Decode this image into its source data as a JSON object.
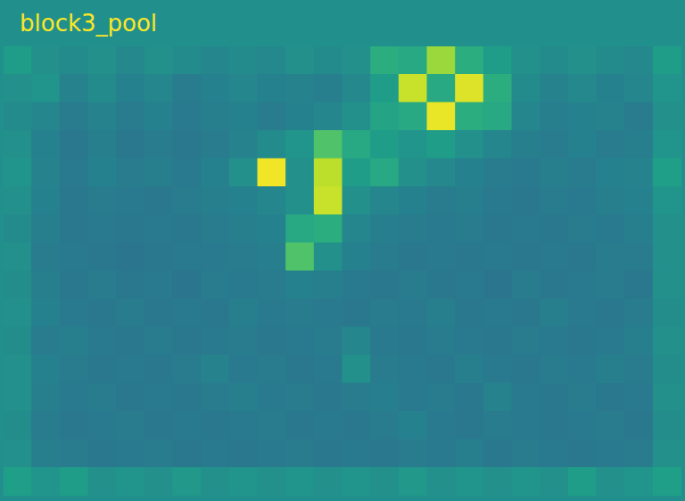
{
  "chart_data": {
    "type": "heatmap",
    "title": "block3_pool",
    "tick_labels": false,
    "clim": [
      0,
      1
    ],
    "cells": [
      [
        0.55,
        0.5,
        0.48,
        0.5,
        0.47,
        0.5,
        0.48,
        0.46,
        0.48,
        0.47,
        0.5,
        0.48,
        0.5,
        0.62,
        0.6,
        0.85,
        0.62,
        0.55,
        0.5,
        0.48,
        0.5,
        0.48,
        0.47,
        0.55
      ],
      [
        0.5,
        0.52,
        0.45,
        0.48,
        0.44,
        0.46,
        0.42,
        0.44,
        0.46,
        0.44,
        0.45,
        0.43,
        0.47,
        0.55,
        0.92,
        0.6,
        0.95,
        0.62,
        0.48,
        0.45,
        0.47,
        0.44,
        0.46,
        0.52
      ],
      [
        0.48,
        0.46,
        0.42,
        0.45,
        0.42,
        0.44,
        0.41,
        0.43,
        0.44,
        0.42,
        0.44,
        0.46,
        0.5,
        0.58,
        0.6,
        0.97,
        0.62,
        0.6,
        0.46,
        0.43,
        0.44,
        0.45,
        0.42,
        0.5
      ],
      [
        0.5,
        0.44,
        0.4,
        0.43,
        0.4,
        0.42,
        0.4,
        0.42,
        0.45,
        0.48,
        0.52,
        0.72,
        0.6,
        0.55,
        0.52,
        0.55,
        0.5,
        0.46,
        0.43,
        0.42,
        0.44,
        0.42,
        0.43,
        0.52
      ],
      [
        0.52,
        0.45,
        0.41,
        0.44,
        0.42,
        0.43,
        0.41,
        0.44,
        0.5,
        0.98,
        0.5,
        0.9,
        0.55,
        0.6,
        0.5,
        0.47,
        0.44,
        0.42,
        0.41,
        0.43,
        0.42,
        0.44,
        0.45,
        0.56
      ],
      [
        0.5,
        0.44,
        0.4,
        0.42,
        0.41,
        0.4,
        0.42,
        0.43,
        0.44,
        0.46,
        0.5,
        0.92,
        0.5,
        0.46,
        0.44,
        0.42,
        0.43,
        0.41,
        0.4,
        0.42,
        0.41,
        0.43,
        0.44,
        0.52
      ],
      [
        0.48,
        0.43,
        0.4,
        0.41,
        0.4,
        0.41,
        0.4,
        0.42,
        0.43,
        0.44,
        0.6,
        0.62,
        0.46,
        0.43,
        0.42,
        0.41,
        0.42,
        0.4,
        0.41,
        0.4,
        0.42,
        0.41,
        0.43,
        0.5
      ],
      [
        0.5,
        0.42,
        0.41,
        0.4,
        0.39,
        0.4,
        0.41,
        0.41,
        0.42,
        0.43,
        0.72,
        0.5,
        0.44,
        0.42,
        0.4,
        0.41,
        0.4,
        0.41,
        0.4,
        0.41,
        0.4,
        0.42,
        0.42,
        0.5
      ],
      [
        0.49,
        0.43,
        0.4,
        0.42,
        0.4,
        0.41,
        0.39,
        0.42,
        0.41,
        0.42,
        0.44,
        0.43,
        0.41,
        0.4,
        0.42,
        0.4,
        0.41,
        0.39,
        0.42,
        0.4,
        0.41,
        0.42,
        0.4,
        0.5
      ],
      [
        0.5,
        0.44,
        0.41,
        0.4,
        0.42,
        0.4,
        0.41,
        0.4,
        0.43,
        0.41,
        0.42,
        0.41,
        0.4,
        0.42,
        0.41,
        0.43,
        0.4,
        0.41,
        0.4,
        0.43,
        0.41,
        0.4,
        0.42,
        0.49
      ],
      [
        0.49,
        0.42,
        0.43,
        0.41,
        0.4,
        0.42,
        0.4,
        0.41,
        0.42,
        0.4,
        0.41,
        0.42,
        0.46,
        0.41,
        0.4,
        0.42,
        0.41,
        0.4,
        0.42,
        0.41,
        0.4,
        0.41,
        0.43,
        0.5
      ],
      [
        0.5,
        0.44,
        0.42,
        0.4,
        0.41,
        0.4,
        0.42,
        0.45,
        0.41,
        0.42,
        0.4,
        0.41,
        0.5,
        0.42,
        0.41,
        0.4,
        0.43,
        0.41,
        0.4,
        0.42,
        0.41,
        0.43,
        0.42,
        0.49
      ],
      [
        0.5,
        0.43,
        0.41,
        0.42,
        0.4,
        0.41,
        0.4,
        0.42,
        0.43,
        0.41,
        0.42,
        0.4,
        0.42,
        0.43,
        0.41,
        0.42,
        0.4,
        0.45,
        0.41,
        0.4,
        0.42,
        0.4,
        0.41,
        0.5
      ],
      [
        0.49,
        0.42,
        0.4,
        0.41,
        0.42,
        0.4,
        0.41,
        0.4,
        0.41,
        0.42,
        0.4,
        0.41,
        0.4,
        0.42,
        0.44,
        0.41,
        0.4,
        0.42,
        0.41,
        0.4,
        0.41,
        0.42,
        0.4,
        0.49
      ],
      [
        0.5,
        0.43,
        0.42,
        0.4,
        0.41,
        0.42,
        0.4,
        0.41,
        0.4,
        0.41,
        0.42,
        0.4,
        0.41,
        0.4,
        0.42,
        0.41,
        0.43,
        0.4,
        0.42,
        0.41,
        0.4,
        0.41,
        0.42,
        0.5
      ],
      [
        0.56,
        0.52,
        0.55,
        0.5,
        0.52,
        0.5,
        0.53,
        0.5,
        0.52,
        0.5,
        0.52,
        0.5,
        0.52,
        0.5,
        0.53,
        0.5,
        0.52,
        0.5,
        0.52,
        0.5,
        0.55,
        0.5,
        0.52,
        0.56
      ]
    ]
  }
}
